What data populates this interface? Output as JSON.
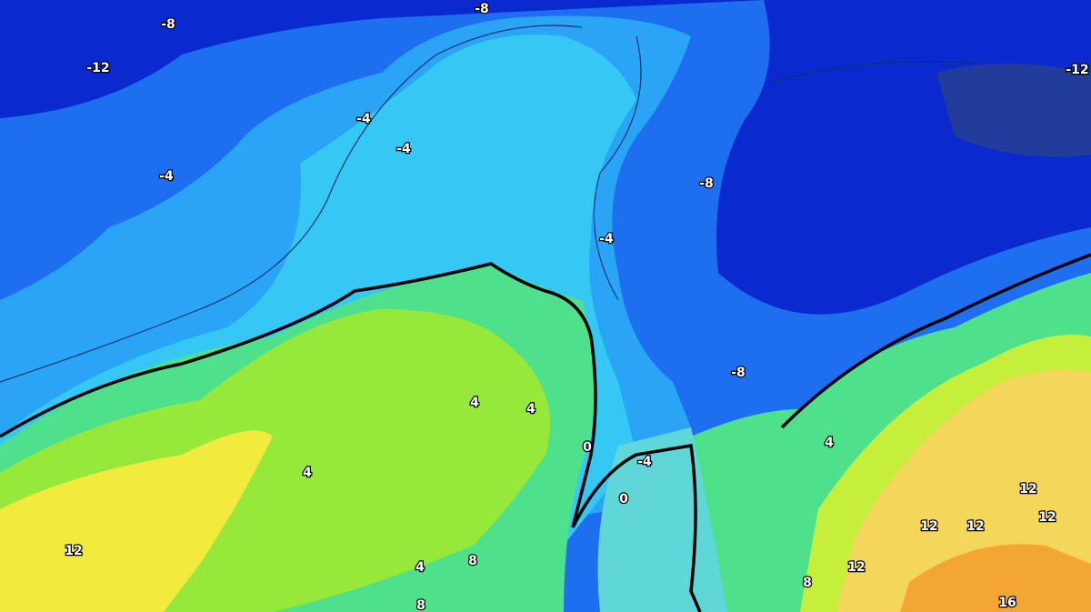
{
  "contour_labels": [
    -8,
    -8,
    -12,
    -12,
    -4,
    -4,
    -4,
    -8,
    -4,
    -8,
    4,
    4,
    0,
    -4,
    4,
    4,
    0,
    12,
    12,
    12,
    12,
    12,
    4,
    8,
    12,
    8,
    16,
    8
  ]
}
